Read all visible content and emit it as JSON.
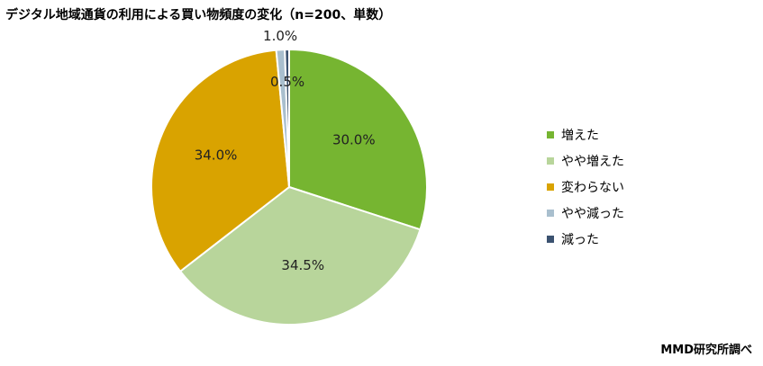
{
  "chart_data": {
    "type": "pie",
    "title": "デジタル地域通貨の利用による買い物頻度の変化（n=200、単数）",
    "categories": [
      "増えた",
      "やや増えた",
      "変わらない",
      "やや減った",
      "減った"
    ],
    "values": [
      30.0,
      34.5,
      34.0,
      1.0,
      0.5
    ],
    "value_labels": [
      "30.0%",
      "34.5%",
      "34.0%",
      "1.0%",
      "0.5%"
    ],
    "unit": "%",
    "colors": [
      "#76b531",
      "#b8d59b",
      "#d9a300",
      "#a9bfce",
      "#3b5270"
    ],
    "start": "12 o'clock",
    "direction": "clockwise",
    "legend_position": "right"
  },
  "footer": {
    "source": "MMD研究所調べ"
  }
}
